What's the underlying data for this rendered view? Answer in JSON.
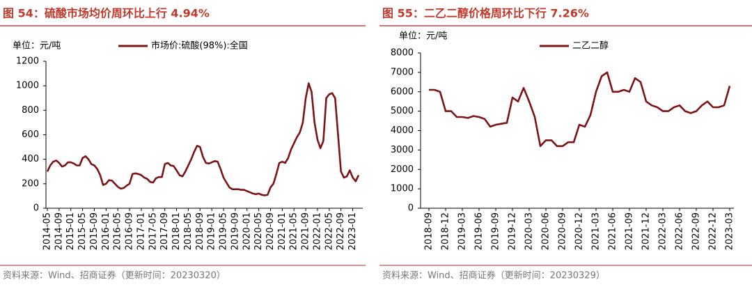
{
  "chart_data": [
    {
      "type": "line",
      "title": "图 54：硫酸市场均价周环比上行 4.94%",
      "unit": "单位：元/吨",
      "source": "资料来源：Wind、招商证券（更新时间：20230320）",
      "categories": [
        "2014-05",
        null,
        null,
        null,
        "2014-09",
        null,
        null,
        null,
        "2015-01",
        null,
        null,
        null,
        "2015-05",
        null,
        null,
        null,
        "2015-09",
        null,
        null,
        null,
        "2016-01",
        null,
        null,
        null,
        "2016-05",
        null,
        null,
        null,
        "2016-09",
        null,
        null,
        null,
        "2017-01",
        null,
        null,
        null,
        "2017-05",
        null,
        null,
        null,
        "2017-09",
        null,
        null,
        null,
        "2018-01",
        null,
        null,
        null,
        "2018-05",
        null,
        null,
        null,
        "2018-09",
        null,
        null,
        null,
        "2019-01",
        null,
        null,
        null,
        "2019-05",
        null,
        null,
        null,
        "2019-09",
        null,
        null,
        null,
        "2020-01",
        null,
        null,
        null,
        "2020-05",
        null,
        null,
        null,
        "2020-09",
        null,
        null,
        null,
        "2021-01",
        null,
        null,
        null,
        "2021-05",
        null,
        null,
        null,
        "2021-09",
        null,
        null,
        null,
        "2022-01",
        null,
        null,
        null,
        "2022-05",
        null,
        null,
        null,
        "2022-09",
        null,
        null,
        null,
        "2023-01",
        null,
        null
      ],
      "series": [
        {
          "name": "市场价:硫酸(98%):全国",
          "color": "#7b1416",
          "values": [
            300,
            350,
            380,
            390,
            370,
            340,
            350,
            375,
            375,
            365,
            350,
            350,
            410,
            425,
            400,
            360,
            350,
            320,
            270,
            190,
            200,
            230,
            225,
            200,
            175,
            160,
            165,
            185,
            200,
            280,
            285,
            280,
            270,
            250,
            240,
            215,
            210,
            245,
            255,
            255,
            360,
            370,
            350,
            345,
            310,
            270,
            260,
            300,
            350,
            400,
            460,
            510,
            500,
            420,
            370,
            365,
            375,
            385,
            380,
            320,
            250,
            210,
            170,
            155,
            155,
            155,
            150,
            150,
            140,
            130,
            120,
            115,
            120,
            110,
            105,
            110,
            170,
            200,
            280,
            370,
            380,
            370,
            410,
            480,
            530,
            580,
            620,
            700,
            900,
            1020,
            950,
            700,
            560,
            490,
            550,
            900,
            930,
            940,
            900,
            600,
            300,
            250,
            260,
            310,
            250,
            220,
            270
          ]
        }
      ],
      "ylim": [
        0,
        1200
      ],
      "yticks": [
        0,
        200,
        400,
        600,
        800,
        1000,
        1200
      ]
    },
    {
      "type": "line",
      "title": "图 55：二乙二醇价格周环比下行 7.26%",
      "unit": "单位：元/吨",
      "source": "资料来源：Wind、招商证券（更新时间：20230329）",
      "categories": [
        "2018-09",
        null,
        null,
        "2018-12",
        null,
        null,
        "2019-03",
        null,
        null,
        "2019-06",
        null,
        null,
        "2019-09",
        null,
        null,
        "2019-12",
        null,
        null,
        "2020-03",
        null,
        null,
        "2020-06",
        null,
        null,
        "2020-09",
        null,
        null,
        "2020-12",
        null,
        null,
        "2021-03",
        null,
        null,
        "2021-06",
        null,
        null,
        "2021-09",
        null,
        null,
        "2021-12",
        null,
        null,
        "2022-03",
        null,
        null,
        "2022-06",
        null,
        null,
        "2022-09",
        null,
        null,
        "2022-12",
        null,
        null,
        "2023-03"
      ],
      "series": [
        {
          "name": "二乙二醇",
          "color": "#7b1416",
          "values": [
            6100,
            6100,
            6000,
            5000,
            5000,
            4700,
            4700,
            4650,
            4750,
            4700,
            4600,
            4200,
            4300,
            4350,
            4400,
            5700,
            5500,
            6200,
            5500,
            4700,
            3200,
            3500,
            3500,
            3200,
            3200,
            3400,
            3400,
            4300,
            4200,
            4800,
            6000,
            6800,
            7000,
            6000,
            6000,
            6100,
            6000,
            6700,
            6500,
            5500,
            5300,
            5200,
            5000,
            5000,
            5200,
            5300,
            5000,
            4900,
            5000,
            5300,
            5500,
            5200,
            5200,
            5300,
            6300
          ]
        }
      ],
      "ylim": [
        0,
        8000
      ],
      "yticks": [
        0,
        1000,
        2000,
        3000,
        4000,
        5000,
        6000,
        7000,
        8000
      ]
    }
  ]
}
